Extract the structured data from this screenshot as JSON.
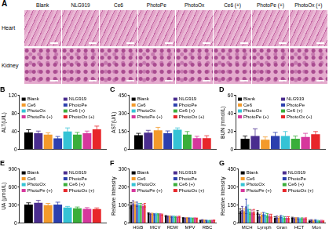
{
  "figure": {
    "panel_a": {
      "label": "A",
      "columns": [
        "Blank",
        "NLG919",
        "Ce6",
        "PhotoPe",
        "PhotoOx",
        "Ce6 (+)",
        "PhotoPe (+)",
        "PhotoOx (+)"
      ],
      "rows": [
        "Heart",
        "Kidney"
      ]
    }
  },
  "chart_data": [
    {
      "type": "bar",
      "title": "B",
      "y_label": "ALT(U/L)",
      "categories": [
        null
      ],
      "ylim": [
        0,
        120
      ],
      "yticks": [
        0,
        40,
        80,
        120
      ],
      "grid": false,
      "legend": "top",
      "series": [
        {
          "name": "Blank",
          "color": "#000000",
          "values": [
            38
          ],
          "errors": [
            6
          ]
        },
        {
          "name": "NLG919",
          "color": "#4a2d8f",
          "values": [
            36
          ],
          "errors": [
            5
          ]
        },
        {
          "name": "Ce6",
          "color": "#f39a2b",
          "values": [
            33
          ],
          "errors": [
            4
          ]
        },
        {
          "name": "PhotoPe",
          "color": "#2b3fae",
          "values": [
            25
          ],
          "errors": [
            4
          ]
        },
        {
          "name": "PhotoOx",
          "color": "#35c3d5",
          "values": [
            40
          ],
          "errors": [
            8
          ]
        },
        {
          "name": "Ce6 (+)",
          "color": "#3aae3a",
          "values": [
            33
          ],
          "errors": [
            5
          ]
        },
        {
          "name": "PhotoPe (+)",
          "color": "#d6379c",
          "values": [
            36
          ],
          "errors": [
            5
          ]
        },
        {
          "name": "PhotoOx (+)",
          "color": "#e8262a",
          "values": [
            45
          ],
          "errors": [
            7
          ]
        }
      ]
    },
    {
      "type": "bar",
      "title": "C",
      "y_label": "AST(U/L)",
      "categories": [
        null
      ],
      "ylim": [
        0,
        450
      ],
      "yticks": [
        0,
        150,
        300,
        450
      ],
      "grid": false,
      "legend": "top",
      "series": [
        {
          "name": "Blank",
          "color": "#000000",
          "values": [
            120
          ],
          "errors": [
            15
          ]
        },
        {
          "name": "NLG919",
          "color": "#4a2d8f",
          "values": [
            140
          ],
          "errors": [
            20
          ]
        },
        {
          "name": "Ce6",
          "color": "#f39a2b",
          "values": [
            160
          ],
          "errors": [
            25
          ]
        },
        {
          "name": "PhotoPe",
          "color": "#2b3fae",
          "values": [
            135
          ],
          "errors": [
            20
          ]
        },
        {
          "name": "PhotoOx",
          "color": "#35c3d5",
          "values": [
            165
          ],
          "errors": [
            15
          ]
        },
        {
          "name": "Ce6 (+)",
          "color": "#3aae3a",
          "values": [
            125
          ],
          "errors": [
            25
          ]
        },
        {
          "name": "PhotoPe (+)",
          "color": "#d6379c",
          "values": [
            95
          ],
          "errors": [
            15
          ]
        },
        {
          "name": "PhotoOx (+)",
          "color": "#e8262a",
          "values": [
            95
          ],
          "errors": [
            20
          ]
        }
      ]
    },
    {
      "type": "bar",
      "title": "D",
      "y_label": "BUN (mmol/L)",
      "categories": [
        null
      ],
      "ylim": [
        0,
        60
      ],
      "yticks": [
        0,
        20,
        40,
        60
      ],
      "grid": false,
      "legend": "top",
      "series": [
        {
          "name": "Blank",
          "color": "#000000",
          "values": [
            12
          ],
          "errors": [
            3
          ]
        },
        {
          "name": "NLG919",
          "color": "#4a2d8f",
          "values": [
            15
          ],
          "errors": [
            8
          ]
        },
        {
          "name": "Ce6",
          "color": "#f39a2b",
          "values": [
            11
          ],
          "errors": [
            3
          ]
        },
        {
          "name": "PhotoPe",
          "color": "#2b3fae",
          "values": [
            15
          ],
          "errors": [
            4
          ]
        },
        {
          "name": "PhotoOx",
          "color": "#35c3d5",
          "values": [
            15
          ],
          "errors": [
            5
          ]
        },
        {
          "name": "Ce6 (+)",
          "color": "#3aae3a",
          "values": [
            12
          ],
          "errors": [
            3
          ]
        },
        {
          "name": "PhotoPe (+)",
          "color": "#d6379c",
          "values": [
            14
          ],
          "errors": [
            4
          ]
        },
        {
          "name": "PhotoOx (+)",
          "color": "#e8262a",
          "values": [
            17
          ],
          "errors": [
            3
          ]
        }
      ]
    },
    {
      "type": "bar",
      "title": "E",
      "y_label": "UA (μmol/L)",
      "categories": [
        null
      ],
      "ylim": [
        0,
        900
      ],
      "yticks": [
        0,
        300,
        600,
        900
      ],
      "grid": false,
      "legend": "top",
      "series": [
        {
          "name": "Blank",
          "color": "#000000",
          "values": [
            310
          ],
          "errors": [
            30
          ]
        },
        {
          "name": "NLG919",
          "color": "#4a2d8f",
          "values": [
            340
          ],
          "errors": [
            40
          ]
        },
        {
          "name": "Ce6",
          "color": "#f39a2b",
          "values": [
            300
          ],
          "errors": [
            30
          ]
        },
        {
          "name": "PhotoPe",
          "color": "#2b3fae",
          "values": [
            310
          ],
          "errors": [
            40
          ]
        },
        {
          "name": "PhotoOx",
          "color": "#35c3d5",
          "values": [
            260
          ],
          "errors": [
            20
          ]
        },
        {
          "name": "Ce6 (+)",
          "color": "#3aae3a",
          "values": [
            250
          ],
          "errors": [
            20
          ]
        },
        {
          "name": "PhotoPe (+)",
          "color": "#d6379c",
          "values": [
            240
          ],
          "errors": [
            20
          ]
        },
        {
          "name": "PhotoOx (+)",
          "color": "#e8262a",
          "values": [
            235
          ],
          "errors": [
            20
          ]
        }
      ]
    },
    {
      "type": "bar",
      "title": "F",
      "y_label": "Relative Intensity",
      "categories": [
        "HGB",
        "MCV",
        "RDW",
        "MPV",
        "RBC"
      ],
      "ylim": [
        0,
        300
      ],
      "yticks": [
        0,
        100,
        200,
        300
      ],
      "grid": false,
      "legend": "top",
      "series": [
        {
          "name": "Blank",
          "color": "#000000",
          "values": [
            100,
            55,
            40,
            30,
            15
          ],
          "errors": [
            15,
            3,
            3,
            2,
            2
          ]
        },
        {
          "name": "NLG919",
          "color": "#4a2d8f",
          "values": [
            110,
            52,
            38,
            28,
            18
          ],
          "errors": [
            15,
            3,
            3,
            2,
            2
          ]
        },
        {
          "name": "Ce6",
          "color": "#f39a2b",
          "values": [
            105,
            53,
            38,
            30,
            16
          ],
          "errors": [
            12,
            3,
            3,
            2,
            2
          ]
        },
        {
          "name": "PhotoPe",
          "color": "#2b3fae",
          "values": [
            105,
            50,
            36,
            28,
            15
          ],
          "errors": [
            12,
            3,
            3,
            2,
            2
          ]
        },
        {
          "name": "PhotoOx",
          "color": "#35c3d5",
          "values": [
            100,
            52,
            37,
            28,
            14
          ],
          "errors": [
            10,
            3,
            3,
            2,
            2
          ]
        },
        {
          "name": "Ce6 (+)",
          "color": "#3aae3a",
          "values": [
            100,
            50,
            35,
            27,
            14
          ],
          "errors": [
            10,
            3,
            3,
            2,
            2
          ]
        },
        {
          "name": "PhotoPe (+)",
          "color": "#d6379c",
          "values": [
            95,
            50,
            35,
            28,
            15
          ],
          "errors": [
            10,
            3,
            3,
            2,
            2
          ]
        },
        {
          "name": "PhotoOx (+)",
          "color": "#e8262a",
          "values": [
            100,
            48,
            36,
            27,
            16
          ],
          "errors": [
            10,
            3,
            3,
            2,
            2
          ]
        }
      ]
    },
    {
      "type": "bar",
      "title": "G",
      "y_label": "Relative Intensity",
      "categories": [
        "MCH",
        "Lymph",
        "Gran",
        "HCT",
        "Mon"
      ],
      "ylim": [
        0,
        450
      ],
      "yticks": [
        0,
        150,
        300,
        450
      ],
      "grid": false,
      "legend": "top",
      "series": [
        {
          "name": "Blank",
          "color": "#000000",
          "values": [
            100,
            90,
            45,
            45,
            20
          ],
          "errors": [
            20,
            15,
            10,
            5,
            5
          ]
        },
        {
          "name": "NLG919",
          "color": "#4a2d8f",
          "values": [
            110,
            60,
            50,
            40,
            25
          ],
          "errors": [
            30,
            15,
            10,
            5,
            5
          ]
        },
        {
          "name": "Ce6",
          "color": "#f39a2b",
          "values": [
            100,
            70,
            45,
            42,
            20
          ],
          "errors": [
            20,
            15,
            10,
            5,
            5
          ]
        },
        {
          "name": "PhotoPe",
          "color": "#2b3fae",
          "values": [
            140,
            75,
            55,
            40,
            25
          ],
          "errors": [
            60,
            15,
            10,
            5,
            5
          ]
        },
        {
          "name": "PhotoOx",
          "color": "#35c3d5",
          "values": [
            120,
            70,
            50,
            38,
            20
          ],
          "errors": [
            30,
            15,
            10,
            5,
            5
          ]
        },
        {
          "name": "Ce6 (+)",
          "color": "#3aae3a",
          "values": [
            95,
            65,
            45,
            40,
            18
          ],
          "errors": [
            20,
            15,
            10,
            5,
            5
          ]
        },
        {
          "name": "PhotoPe (+)",
          "color": "#d6379c",
          "values": [
            90,
            60,
            45,
            38,
            20
          ],
          "errors": [
            20,
            15,
            10,
            5,
            5
          ]
        },
        {
          "name": "PhotoOx (+)",
          "color": "#e8262a",
          "values": [
            95,
            60,
            45,
            40,
            18
          ],
          "errors": [
            20,
            15,
            10,
            5,
            5
          ]
        }
      ]
    }
  ]
}
